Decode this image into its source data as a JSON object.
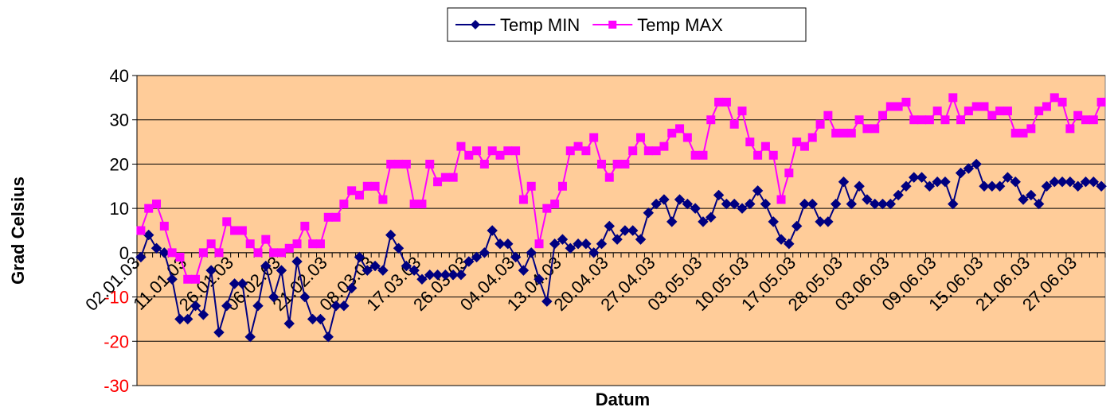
{
  "chart_data": {
    "type": "line",
    "x_label": "Datum",
    "y_label": "Grad Celsius",
    "categories": [
      "02.01.03",
      null,
      null,
      null,
      null,
      null,
      "11.01.03",
      null,
      null,
      null,
      null,
      null,
      "26.01.03",
      null,
      null,
      null,
      null,
      null,
      "06.02.03",
      null,
      null,
      null,
      null,
      null,
      "21.02.03",
      null,
      null,
      null,
      null,
      null,
      "08.03.03",
      null,
      null,
      null,
      null,
      null,
      "17.03.03",
      null,
      null,
      null,
      null,
      null,
      "26.03.03",
      null,
      null,
      null,
      null,
      null,
      "04.04.03",
      null,
      null,
      null,
      null,
      null,
      "13.04.03",
      null,
      null,
      null,
      null,
      null,
      "20.04.03",
      null,
      null,
      null,
      null,
      null,
      "27.04.03",
      null,
      null,
      null,
      null,
      null,
      "03.05.03",
      null,
      null,
      null,
      null,
      null,
      "10.05.03",
      null,
      null,
      null,
      null,
      null,
      "17.05.03",
      null,
      null,
      null,
      null,
      null,
      "28.05.03",
      null,
      null,
      null,
      null,
      null,
      "03.06.03",
      null,
      null,
      null,
      null,
      null,
      "09.06.03",
      null,
      null,
      null,
      null,
      null,
      "15.06.03",
      null,
      null,
      null,
      null,
      null,
      "21.06.03",
      null,
      null,
      null,
      null,
      null,
      "27.06.03",
      null,
      null,
      null
    ],
    "series": [
      {
        "name": "Temp MIN",
        "color": "#000080",
        "marker": "diamond",
        "values": [
          -1,
          4,
          1,
          0,
          -6,
          -15,
          -15,
          -12,
          -14,
          -4,
          -18,
          -12,
          -7,
          -7,
          -19,
          -12,
          -3,
          -10,
          -4,
          -16,
          -2,
          -10,
          -15,
          -15,
          -19,
          -12,
          -12,
          -8,
          -1,
          -4,
          -3,
          -4,
          4,
          1,
          -3,
          -4,
          -6,
          -5,
          -5,
          -5,
          -5,
          -5,
          -2,
          -1,
          0,
          5,
          2,
          2,
          -1,
          -4,
          0,
          -6,
          -11,
          2,
          3,
          1,
          2,
          2,
          0,
          2,
          6,
          3,
          5,
          5,
          3,
          9,
          11,
          12,
          7,
          12,
          11,
          10,
          7,
          8,
          13,
          11,
          11,
          10,
          11,
          14,
          11,
          7,
          3,
          2,
          6,
          11,
          11,
          7,
          7,
          11,
          16,
          11,
          15,
          12,
          11,
          11,
          11,
          13,
          15,
          17,
          17,
          15,
          16,
          16,
          11,
          18,
          19,
          20,
          15,
          15,
          15,
          17,
          16,
          12,
          13,
          11,
          15,
          16,
          16,
          16,
          15,
          16,
          16,
          15
        ]
      },
      {
        "name": "Temp MAX",
        "color": "#ff00ff",
        "marker": "square",
        "values": [
          5,
          10,
          11,
          6,
          0,
          -1,
          -6,
          -6,
          0,
          2,
          0,
          7,
          5,
          5,
          2,
          0,
          3,
          0,
          0,
          1,
          2,
          6,
          2,
          2,
          8,
          8,
          11,
          14,
          13,
          15,
          15,
          12,
          20,
          20,
          20,
          11,
          11,
          20,
          16,
          17,
          17,
          24,
          22,
          23,
          20,
          23,
          22,
          23,
          23,
          12,
          15,
          2,
          10,
          11,
          15,
          23,
          24,
          23,
          26,
          20,
          17,
          20,
          20,
          23,
          26,
          23,
          23,
          24,
          27,
          28,
          26,
          22,
          22,
          30,
          34,
          34,
          29,
          32,
          25,
          22,
          24,
          22,
          12,
          18,
          25,
          24,
          26,
          29,
          31,
          27,
          27,
          27,
          30,
          28,
          28,
          31,
          33,
          33,
          34,
          30,
          30,
          30,
          32,
          30,
          35,
          30,
          32,
          33,
          33,
          31,
          32,
          32,
          27,
          27,
          28,
          32,
          33,
          35,
          34,
          28,
          31,
          30,
          30,
          34
        ]
      }
    ],
    "ylim": [
      -30,
      40
    ],
    "yticks": [
      -30,
      -20,
      -10,
      0,
      10,
      20,
      30,
      40
    ],
    "negative_tick_color": "#ff0000",
    "plot_background": "#ffcc99",
    "grid": true,
    "legend": "top"
  }
}
